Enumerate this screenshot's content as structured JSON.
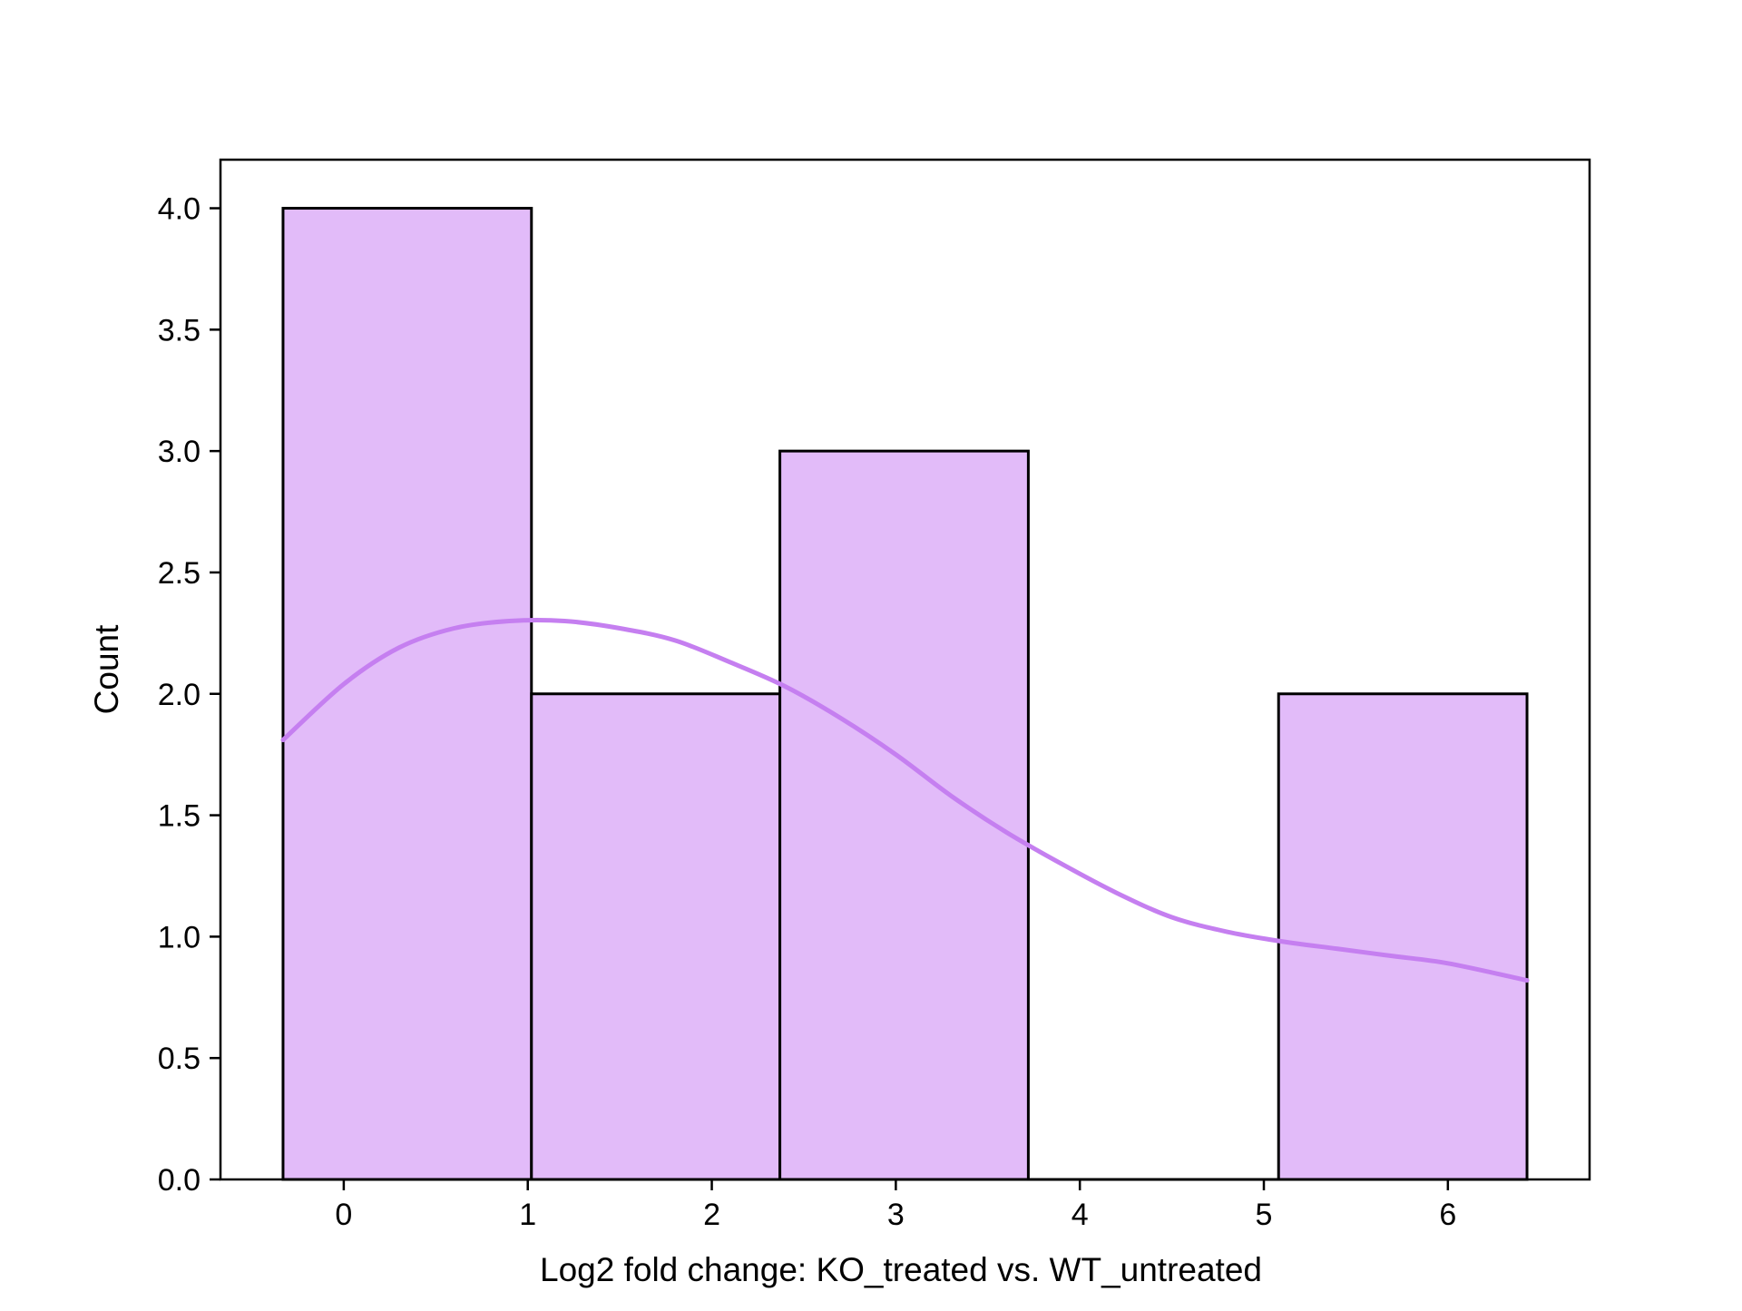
{
  "chart_data": {
    "type": "bar",
    "subtype": "histogram-with-kde",
    "title": "",
    "xlabel": "Log2 fold change: KO_treated vs. WT_untreated",
    "ylabel": "Count",
    "bin_edges": [
      -0.33,
      1.02,
      2.37,
      3.72,
      5.08,
      6.43
    ],
    "values": [
      4,
      2,
      3,
      0,
      2
    ],
    "xlim": [
      -0.67,
      6.77
    ],
    "ylim": [
      0,
      4.2
    ],
    "xticks": [
      "0",
      "1",
      "2",
      "3",
      "4",
      "5",
      "6"
    ],
    "yticks": [
      "0.0",
      "0.5",
      "1.0",
      "1.5",
      "2.0",
      "2.5",
      "3.0",
      "3.5",
      "4.0"
    ],
    "kde": {
      "x": [
        -0.33,
        0.0,
        0.3,
        0.6,
        0.9,
        1.2,
        1.5,
        1.8,
        2.1,
        2.4,
        2.7,
        3.0,
        3.3,
        3.6,
        3.9,
        4.2,
        4.5,
        4.8,
        5.1,
        5.4,
        5.7,
        6.0,
        6.43
      ],
      "y": [
        1.81,
        2.04,
        2.19,
        2.27,
        2.3,
        2.3,
        2.27,
        2.22,
        2.13,
        2.03,
        1.9,
        1.75,
        1.58,
        1.43,
        1.3,
        1.18,
        1.08,
        1.02,
        0.98,
        0.95,
        0.92,
        0.89,
        0.82
      ]
    },
    "grid": false,
    "legend": "none",
    "colors": {
      "bar_fill": "#e2bbf9",
      "bar_edge": "#000000",
      "kde_line": "#c57ff0",
      "axis": "#000000"
    }
  }
}
